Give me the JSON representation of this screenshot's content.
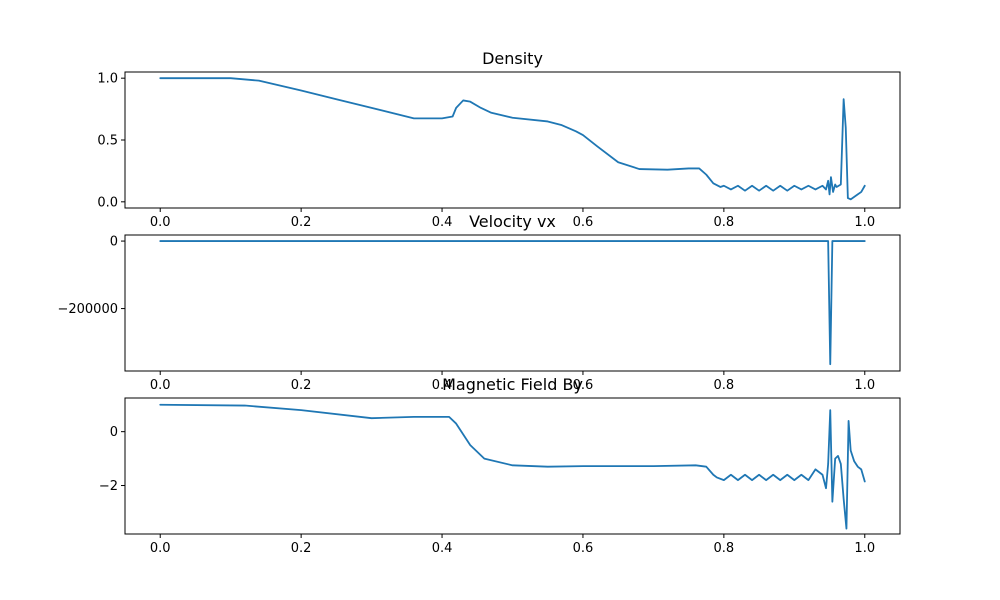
{
  "chart_data": [
    {
      "type": "line",
      "title": "Density",
      "xlabel": "",
      "ylabel": "",
      "xlim": [
        -0.05,
        1.05
      ],
      "ylim": [
        -0.05,
        1.05
      ],
      "grid": false,
      "xticks": [
        0.0,
        0.2,
        0.4,
        0.6,
        0.8,
        1.0
      ],
      "xtick_labels": [
        "0.0",
        "0.2",
        "0.4",
        "0.6",
        "0.8",
        "1.0"
      ],
      "yticks": [
        0.0,
        0.5,
        1.0
      ],
      "ytick_labels": [
        "0.0",
        "0.5",
        "1.0"
      ],
      "series": [
        {
          "color": "#1f77b4",
          "x": [
            0.0,
            0.1,
            0.14,
            0.2,
            0.25,
            0.3,
            0.36,
            0.4,
            0.415,
            0.42,
            0.43,
            0.44,
            0.455,
            0.47,
            0.5,
            0.55,
            0.57,
            0.59,
            0.6,
            0.62,
            0.65,
            0.68,
            0.72,
            0.75,
            0.765,
            0.775,
            0.785,
            0.795,
            0.8,
            0.81,
            0.82,
            0.83,
            0.84,
            0.85,
            0.86,
            0.87,
            0.88,
            0.89,
            0.9,
            0.91,
            0.92,
            0.93,
            0.94,
            0.945,
            0.948,
            0.95,
            0.952,
            0.955,
            0.958,
            0.96,
            0.963,
            0.966,
            0.97,
            0.973,
            0.976,
            0.98,
            0.985,
            0.99,
            0.995,
            1.0
          ],
          "y": [
            1.0,
            1.0,
            0.98,
            0.9,
            0.83,
            0.76,
            0.675,
            0.675,
            0.69,
            0.76,
            0.82,
            0.81,
            0.76,
            0.72,
            0.68,
            0.65,
            0.62,
            0.57,
            0.54,
            0.45,
            0.32,
            0.265,
            0.26,
            0.27,
            0.27,
            0.22,
            0.15,
            0.12,
            0.13,
            0.1,
            0.13,
            0.09,
            0.13,
            0.09,
            0.13,
            0.09,
            0.13,
            0.09,
            0.13,
            0.1,
            0.13,
            0.1,
            0.13,
            0.1,
            0.17,
            0.06,
            0.2,
            0.08,
            0.14,
            0.12,
            0.13,
            0.14,
            0.83,
            0.6,
            0.03,
            0.02,
            0.04,
            0.06,
            0.08,
            0.13
          ]
        }
      ]
    },
    {
      "type": "line",
      "title": "Velocity vx",
      "xlabel": "",
      "ylabel": "",
      "xlim": [
        -0.05,
        1.05
      ],
      "ylim": [
        -385000,
        18000
      ],
      "grid": false,
      "xticks": [
        0.0,
        0.2,
        0.4,
        0.6,
        0.8,
        1.0
      ],
      "xtick_labels": [
        "0.0",
        "0.2",
        "0.4",
        "0.6",
        "0.8",
        "1.0"
      ],
      "yticks": [
        0,
        -200000
      ],
      "ytick_labels": [
        "0",
        "−200000"
      ],
      "series": [
        {
          "color": "#1f77b4",
          "x": [
            0.0,
            0.945,
            0.948,
            0.951,
            0.954,
            0.957,
            1.0
          ],
          "y": [
            0,
            0,
            0,
            -365000,
            0,
            0,
            0
          ]
        }
      ]
    },
    {
      "type": "line",
      "title": "Magnetic Field By",
      "xlabel": "",
      "ylabel": "",
      "xlim": [
        -0.05,
        1.05
      ],
      "ylim": [
        -3.8,
        1.25
      ],
      "grid": false,
      "xticks": [
        0.0,
        0.2,
        0.4,
        0.6,
        0.8,
        1.0
      ],
      "xtick_labels": [
        "0.0",
        "0.2",
        "0.4",
        "0.6",
        "0.8",
        "1.0"
      ],
      "yticks": [
        0,
        -2
      ],
      "ytick_labels": [
        "0",
        "−2"
      ],
      "series": [
        {
          "color": "#1f77b4",
          "x": [
            0.0,
            0.12,
            0.2,
            0.3,
            0.36,
            0.41,
            0.42,
            0.43,
            0.44,
            0.46,
            0.5,
            0.55,
            0.6,
            0.7,
            0.76,
            0.775,
            0.785,
            0.79,
            0.8,
            0.81,
            0.82,
            0.83,
            0.84,
            0.85,
            0.86,
            0.87,
            0.88,
            0.89,
            0.9,
            0.91,
            0.92,
            0.93,
            0.94,
            0.945,
            0.948,
            0.951,
            0.954,
            0.958,
            0.962,
            0.966,
            0.97,
            0.974,
            0.977,
            0.98,
            0.985,
            0.99,
            0.995,
            1.0
          ],
          "y": [
            1.0,
            0.97,
            0.8,
            0.5,
            0.55,
            0.55,
            0.3,
            -0.1,
            -0.5,
            -1.0,
            -1.25,
            -1.3,
            -1.28,
            -1.28,
            -1.25,
            -1.3,
            -1.6,
            -1.7,
            -1.8,
            -1.6,
            -1.8,
            -1.6,
            -1.8,
            -1.6,
            -1.8,
            -1.6,
            -1.8,
            -1.6,
            -1.8,
            -1.6,
            -1.8,
            -1.4,
            -1.6,
            -2.1,
            -1.2,
            0.8,
            -2.6,
            -1.0,
            -0.9,
            -1.2,
            -2.5,
            -3.6,
            0.4,
            -0.7,
            -1.1,
            -1.3,
            -1.4,
            -1.85
          ]
        }
      ]
    }
  ]
}
